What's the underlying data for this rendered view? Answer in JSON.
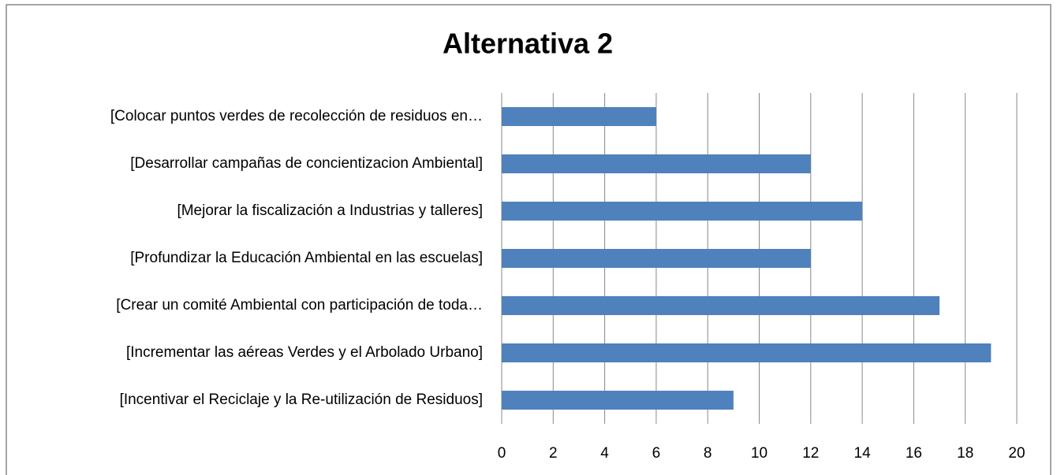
{
  "chart_data": {
    "type": "hbar",
    "title": "Alternativa 2",
    "categories": [
      "[Colocar puntos verdes de recolección de residuos en…",
      "[Desarrollar campañas de concientizacion Ambiental]",
      "[Mejorar la fiscalización a Industrias y talleres]",
      "[Profundizar la Educación Ambiental en las escuelas]",
      "[Crear un comité Ambiental con participación de toda…",
      "[Incrementar las aéreas Verdes y el Arbolado Urbano]",
      "[Incentivar el Reciclaje y la Re-utilización de Residuos]"
    ],
    "values": [
      6,
      12,
      14,
      12,
      17,
      19,
      9
    ],
    "color": "#4f81bd",
    "xlim": [
      0,
      20
    ],
    "xticks": [
      0,
      2,
      4,
      6,
      8,
      10,
      12,
      14,
      16,
      18,
      20
    ],
    "grid": true
  }
}
